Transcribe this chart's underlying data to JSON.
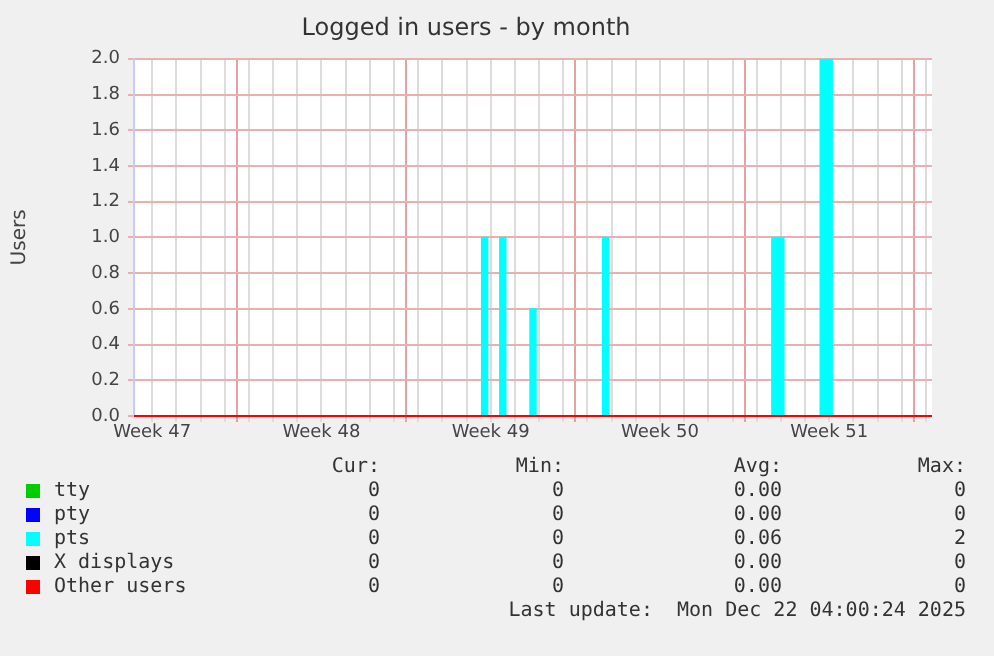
{
  "chart_data": {
    "type": "line",
    "title": "Logged in users - by month",
    "ylabel": "Users",
    "categories": [
      null,
      null,
      null,
      "Week 47",
      null,
      null,
      null,
      null,
      null,
      null,
      null,
      null,
      null,
      null,
      null,
      null,
      null,
      null,
      null,
      null,
      null,
      null,
      null,
      null,
      null,
      null,
      null,
      null,
      null,
      null,
      null,
      "Week 48",
      null,
      null,
      null,
      null,
      null,
      null,
      null,
      null,
      null,
      null,
      null,
      null,
      null,
      null,
      null,
      null,
      null,
      null,
      null,
      null,
      null,
      null,
      null,
      null,
      null,
      null,
      null,
      "Week 49",
      null,
      null,
      null,
      null,
      null,
      null,
      null,
      null,
      null,
      null,
      null,
      null,
      null,
      null,
      null,
      null,
      null,
      null,
      null,
      null,
      null,
      null,
      null,
      null,
      null,
      null,
      null,
      "Week 50",
      null,
      null,
      null,
      null,
      null,
      null,
      null,
      null,
      null,
      null,
      null,
      null,
      null,
      null,
      null,
      null,
      null,
      null,
      null,
      null,
      null,
      null,
      null,
      null,
      null,
      null,
      null,
      "Week 51",
      null,
      null,
      null,
      null,
      null,
      null,
      null,
      null,
      null,
      null,
      null,
      null,
      null,
      null,
      null,
      null,
      null
    ],
    "ylim": [
      0,
      2
    ],
    "yticks": [
      {
        "value": 0,
        "label": "0.0"
      },
      {
        "value": 0.2,
        "label": "0.2"
      },
      {
        "value": 0.4,
        "label": "0.4"
      },
      {
        "value": 0.6,
        "label": "0.6"
      },
      {
        "value": 0.8,
        "label": "0.8"
      },
      {
        "value": 1,
        "label": "1.0"
      },
      {
        "value": 1.2,
        "label": "1.2"
      },
      {
        "value": 1.4,
        "label": "1.4"
      },
      {
        "value": 1.6,
        "label": "1.6"
      },
      {
        "value": 1.8,
        "label": "1.8"
      },
      {
        "value": 2,
        "label": "2.0"
      }
    ],
    "grid": true,
    "legend": "bottom",
    "marker": "none",
    "series": [
      {
        "name": "tty",
        "color": "#00cc00",
        "values": [
          null,
          null,
          null,
          null,
          null,
          null,
          null,
          null,
          null,
          null,
          null,
          null,
          null,
          null,
          null,
          null,
          null,
          null,
          null,
          null,
          null,
          null,
          null,
          null,
          null,
          null,
          null,
          null,
          null,
          null,
          null,
          null,
          null,
          null,
          null,
          null,
          null,
          null,
          null,
          null,
          null,
          null,
          null,
          null,
          null,
          null,
          null,
          null,
          null,
          null,
          null,
          null,
          null,
          null,
          null,
          null,
          null,
          null,
          null,
          null,
          null,
          null,
          null,
          null,
          null,
          null,
          null,
          null,
          null,
          null,
          null,
          null,
          null,
          null,
          null,
          null,
          null,
          null,
          null,
          null,
          null,
          null,
          null,
          null,
          null,
          null,
          null,
          null,
          null,
          null,
          null,
          null,
          null,
          null,
          null,
          null,
          null,
          null,
          null,
          null,
          null,
          null,
          null,
          null,
          null,
          null,
          null,
          null,
          null,
          null,
          null,
          null,
          null,
          null,
          null,
          null,
          null,
          null,
          null,
          null,
          null,
          null,
          null,
          null,
          null,
          null,
          null,
          null,
          null,
          null,
          null,
          null,
          null
        ]
      },
      {
        "name": "pty",
        "color": "#0000ff",
        "values": [
          null,
          null,
          null,
          null,
          null,
          null,
          null,
          null,
          null,
          null,
          null,
          null,
          null,
          null,
          null,
          null,
          null,
          null,
          null,
          null,
          null,
          null,
          null,
          null,
          null,
          null,
          null,
          null,
          null,
          null,
          null,
          null,
          null,
          null,
          null,
          null,
          null,
          null,
          null,
          null,
          null,
          null,
          null,
          null,
          null,
          null,
          null,
          null,
          null,
          null,
          null,
          null,
          null,
          null,
          null,
          null,
          null,
          null,
          null,
          null,
          null,
          null,
          null,
          null,
          null,
          null,
          null,
          null,
          null,
          null,
          null,
          null,
          null,
          null,
          null,
          null,
          null,
          null,
          null,
          null,
          null,
          null,
          null,
          null,
          null,
          null,
          null,
          null,
          null,
          null,
          null,
          null,
          null,
          null,
          null,
          null,
          null,
          null,
          null,
          null,
          null,
          null,
          null,
          null,
          null,
          null,
          null,
          null,
          null,
          null,
          null,
          null,
          null,
          null,
          null,
          null,
          null,
          null,
          null,
          null,
          null,
          null,
          null,
          null,
          null,
          null,
          null,
          null,
          null,
          null,
          null,
          null,
          null
        ]
      },
      {
        "name": "pts",
        "color": "#00ffff",
        "type": "bar",
        "values": [
          0,
          0,
          0,
          0,
          0,
          0,
          0,
          0,
          0,
          0,
          0,
          0,
          0,
          0,
          0,
          0,
          0,
          0,
          0,
          0,
          0,
          0,
          0,
          0,
          0,
          0,
          0,
          0,
          0,
          0,
          0,
          0,
          0,
          0,
          0,
          0,
          0,
          0,
          0,
          0,
          0,
          0,
          0,
          0,
          0,
          0,
          0,
          0,
          0,
          0,
          0,
          0,
          0,
          0,
          0,
          0,
          0,
          0,
          1,
          0,
          0,
          1,
          0,
          0,
          0,
          0,
          0.6,
          0,
          0,
          0,
          0,
          0,
          0,
          0,
          0,
          0,
          0,
          0,
          1,
          0,
          0,
          0,
          0,
          0,
          0,
          0,
          0,
          0,
          0,
          0,
          0,
          0,
          0,
          0,
          0,
          0,
          0,
          0,
          0,
          0,
          0,
          0,
          0,
          0,
          0,
          0,
          1,
          1,
          0,
          0,
          0,
          0,
          0,
          0,
          2,
          2,
          0,
          0,
          0,
          0,
          0,
          0,
          0,
          0,
          0,
          0,
          0,
          0,
          0,
          0,
          0,
          0,
          0
        ]
      },
      {
        "name": "X displays",
        "color": "#000000",
        "values": [
          null,
          null,
          null,
          null,
          null,
          null,
          null,
          null,
          null,
          null,
          null,
          null,
          null,
          null,
          null,
          null,
          null,
          null,
          null,
          null,
          null,
          null,
          null,
          null,
          null,
          null,
          null,
          null,
          null,
          null,
          null,
          null,
          null,
          null,
          null,
          null,
          null,
          null,
          null,
          null,
          null,
          null,
          null,
          null,
          null,
          null,
          null,
          null,
          null,
          null,
          null,
          null,
          null,
          null,
          null,
          null,
          null,
          null,
          null,
          null,
          null,
          null,
          null,
          null,
          null,
          null,
          null,
          null,
          null,
          null,
          null,
          null,
          null,
          null,
          null,
          null,
          null,
          null,
          null,
          null,
          null,
          null,
          null,
          null,
          null,
          null,
          null,
          null,
          null,
          null,
          null,
          null,
          null,
          null,
          null,
          null,
          null,
          null,
          null,
          null,
          null,
          null,
          null,
          null,
          null,
          null,
          null,
          null,
          null,
          null,
          null,
          null,
          null,
          null,
          null,
          null,
          null,
          null,
          null,
          null,
          null,
          null,
          null,
          null,
          null,
          null,
          null,
          null,
          null,
          null,
          null,
          null,
          null
        ]
      },
      {
        "name": "Other users",
        "color": "#ff0000",
        "values": [
          0,
          0,
          0,
          0,
          0,
          0,
          0,
          0,
          0,
          0,
          0,
          0,
          0,
          0,
          0,
          0,
          0,
          0,
          0,
          0,
          0,
          0,
          0,
          0,
          0,
          0,
          0,
          0,
          0,
          0,
          0,
          0,
          0,
          0,
          0,
          0,
          0,
          0,
          0,
          0,
          0,
          0,
          0,
          0,
          0,
          0,
          0,
          0,
          0,
          0,
          0,
          0,
          0,
          0,
          0,
          0,
          0,
          0,
          0,
          0,
          0,
          0,
          0,
          0,
          0,
          0,
          0,
          0,
          0,
          0,
          0,
          0,
          0,
          0,
          0,
          0,
          0,
          0,
          0,
          0,
          0,
          0,
          0,
          0,
          0,
          0,
          0,
          0,
          0,
          0,
          0,
          0,
          0,
          0,
          0,
          0,
          0,
          0,
          0,
          0,
          0,
          0,
          0,
          0,
          0,
          0,
          0,
          0,
          0,
          0,
          0,
          0,
          0,
          0,
          0,
          0,
          0,
          0,
          0,
          0,
          0,
          0,
          0,
          0,
          0,
          0,
          0,
          0,
          0,
          0,
          0,
          0,
          0
        ]
      }
    ],
    "annotations": [
      "Cur:",
      "Min:",
      "Avg:",
      "Max:",
      "0",
      "0",
      "0.00",
      "0",
      "0",
      "0",
      "0.00",
      "0",
      "0",
      "0",
      "0.06",
      "2",
      "0",
      "0",
      "0.00",
      "0",
      "0",
      "0",
      "0.00",
      "0",
      "Last update:  Mon Dec 22 04:00:24 2025"
    ]
  }
}
